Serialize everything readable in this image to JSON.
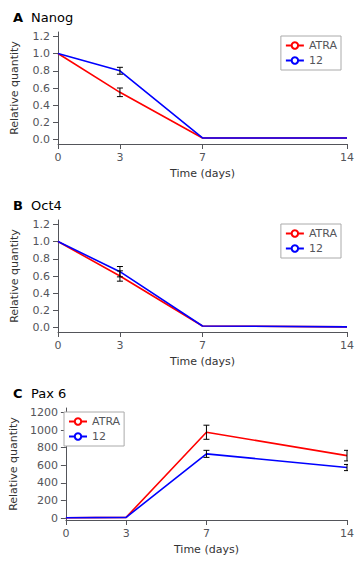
{
  "chart_data": [
    {
      "type": "line",
      "annotations": [
        "A"
      ],
      "title": "Nanog",
      "xlabel": "Time (days)",
      "ylabel": "Relative quantity",
      "x": [
        0,
        3,
        7,
        14
      ],
      "series": [
        {
          "name": "ATRA",
          "color": "#ff0000",
          "values": [
            1.0,
            0.55,
            0.02,
            0.02
          ],
          "yerr": [
            null,
            0.05,
            null,
            null
          ]
        },
        {
          "name": "12",
          "color": "#0000ff",
          "values": [
            1.0,
            0.8,
            0.02,
            0.02
          ],
          "yerr": [
            null,
            0.04,
            null,
            null
          ]
        }
      ],
      "xlim": [
        0,
        14
      ],
      "xticks": [
        0,
        3,
        7,
        14
      ],
      "ylim": [
        -0.05,
        1.25
      ],
      "yticks": [
        {
          "value": 0,
          "label": "0.0"
        },
        0.2,
        0.4,
        0.6,
        0.8,
        {
          "value": 1,
          "label": "1.0"
        },
        1.2
      ],
      "grid": false,
      "legend": "upper right"
    },
    {
      "type": "line",
      "annotations": [
        "B"
      ],
      "title": "Oct4",
      "xlabel": "Time (days)",
      "ylabel": "Relative quantity",
      "x": [
        0,
        3,
        7,
        14
      ],
      "series": [
        {
          "name": "ATRA",
          "color": "#ff0000",
          "values": [
            1.0,
            0.6,
            0.02,
            0.01
          ],
          "yerr": [
            null,
            0.06,
            null,
            null
          ]
        },
        {
          "name": "12",
          "color": "#0000ff",
          "values": [
            1.0,
            0.65,
            0.02,
            0.01
          ],
          "yerr": [
            null,
            0.06,
            null,
            null
          ]
        }
      ],
      "xlim": [
        0,
        14
      ],
      "xticks": [
        0,
        3,
        7,
        14
      ],
      "ylim": [
        -0.05,
        1.25
      ],
      "yticks": [
        {
          "value": 0,
          "label": "0.0"
        },
        0.2,
        0.4,
        0.6,
        0.8,
        {
          "value": 1,
          "label": "1.0"
        },
        1.2
      ],
      "grid": false,
      "legend": "upper right"
    },
    {
      "type": "line",
      "annotations": [
        "C"
      ],
      "title": "Pax 6",
      "xlabel": "Time (days)",
      "ylabel": "Relative quantity",
      "x": [
        0,
        3,
        7,
        14
      ],
      "series": [
        {
          "name": "ATRA",
          "color": "#ff0000",
          "values": [
            5,
            10,
            975,
            710
          ],
          "yerr": [
            null,
            null,
            80,
            60
          ]
        },
        {
          "name": "12",
          "color": "#0000ff",
          "values": [
            5,
            10,
            730,
            575
          ],
          "yerr": [
            null,
            null,
            40,
            35
          ]
        }
      ],
      "xlim": [
        0,
        14
      ],
      "xticks": [
        0,
        3,
        7,
        14
      ],
      "ylim": [
        -20,
        1250
      ],
      "yticks": [
        0,
        200,
        400,
        600,
        800,
        1000,
        1200
      ],
      "grid": false,
      "legend": "upper left"
    }
  ]
}
